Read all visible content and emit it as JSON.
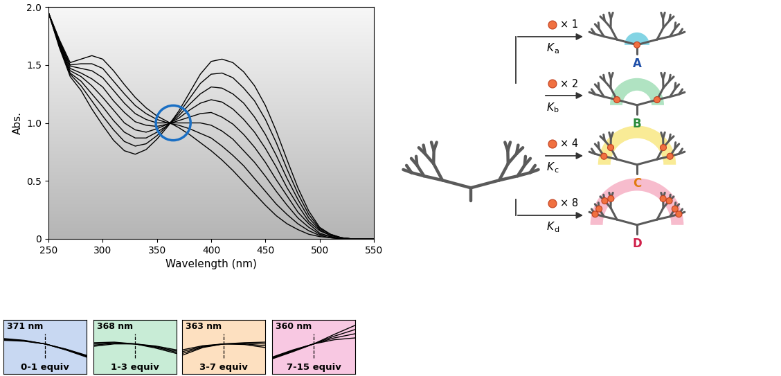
{
  "chart_data": [
    {
      "type": "line",
      "x_label": "Wavelength (nm)",
      "y_label": "Abs.",
      "color": "#000000",
      "x": [
        250,
        260,
        270,
        280,
        290,
        300,
        310,
        320,
        330,
        340,
        350,
        360,
        370,
        380,
        390,
        400,
        410,
        420,
        430,
        440,
        450,
        460,
        470,
        480,
        490,
        500,
        510,
        520,
        530,
        540,
        550
      ],
      "series": [
        {
          "values": [
            1.95,
            1.72,
            1.52,
            1.55,
            1.58,
            1.55,
            1.45,
            1.33,
            1.22,
            1.13,
            1.06,
            1.01,
            0.96,
            0.9,
            0.83,
            0.76,
            0.68,
            0.59,
            0.49,
            0.39,
            0.29,
            0.2,
            0.13,
            0.08,
            0.04,
            0.02,
            0.01,
            0,
            0,
            0,
            0
          ]
        },
        {
          "values": [
            1.95,
            1.71,
            1.5,
            1.51,
            1.51,
            1.47,
            1.36,
            1.25,
            1.15,
            1.08,
            1.03,
            1.0,
            0.98,
            0.95,
            0.91,
            0.87,
            0.8,
            0.72,
            0.63,
            0.52,
            0.41,
            0.3,
            0.21,
            0.13,
            0.07,
            0.03,
            0.01,
            0,
            0,
            0,
            0
          ]
        },
        {
          "values": [
            1.95,
            1.7,
            1.49,
            1.47,
            1.45,
            1.39,
            1.28,
            1.17,
            1.08,
            1.03,
            1.0,
            1.0,
            1.0,
            1.0,
            1.0,
            0.98,
            0.93,
            0.86,
            0.76,
            0.66,
            0.54,
            0.41,
            0.29,
            0.18,
            0.1,
            0.04,
            0.02,
            0,
            0,
            0,
            0
          ]
        },
        {
          "values": [
            1.95,
            1.69,
            1.47,
            1.43,
            1.38,
            1.31,
            1.19,
            1.09,
            1.01,
            0.98,
            0.97,
            0.99,
            1.02,
            1.05,
            1.08,
            1.09,
            1.05,
            0.99,
            0.9,
            0.79,
            0.66,
            0.51,
            0.37,
            0.23,
            0.13,
            0.05,
            0.02,
            0,
            0,
            0,
            0
          ]
        },
        {
          "values": [
            1.95,
            1.68,
            1.45,
            1.4,
            1.32,
            1.22,
            1.11,
            1.0,
            0.94,
            0.92,
            0.95,
            0.99,
            1.04,
            1.11,
            1.17,
            1.2,
            1.18,
            1.12,
            1.03,
            0.92,
            0.78,
            0.62,
            0.44,
            0.29,
            0.15,
            0.07,
            0.03,
            0.01,
            0,
            0,
            0
          ]
        },
        {
          "values": [
            1.95,
            1.67,
            1.43,
            1.36,
            1.25,
            1.14,
            1.02,
            0.92,
            0.87,
            0.87,
            0.92,
            0.98,
            1.06,
            1.16,
            1.25,
            1.31,
            1.3,
            1.25,
            1.17,
            1.05,
            0.9,
            0.72,
            0.52,
            0.34,
            0.18,
            0.08,
            0.03,
            0.01,
            0,
            0,
            0
          ]
        },
        {
          "values": [
            1.95,
            1.66,
            1.42,
            1.32,
            1.19,
            1.06,
            0.94,
            0.84,
            0.8,
            0.82,
            0.89,
            0.98,
            1.08,
            1.21,
            1.34,
            1.42,
            1.43,
            1.39,
            1.3,
            1.19,
            1.03,
            0.83,
            0.6,
            0.39,
            0.21,
            0.09,
            0.04,
            0.01,
            0,
            0,
            0
          ]
        },
        {
          "values": [
            1.95,
            1.65,
            1.4,
            1.28,
            1.12,
            0.98,
            0.85,
            0.76,
            0.73,
            0.77,
            0.86,
            0.97,
            1.1,
            1.26,
            1.42,
            1.53,
            1.55,
            1.52,
            1.44,
            1.32,
            1.15,
            0.93,
            0.68,
            0.44,
            0.24,
            0.1,
            0.04,
            0.01,
            0,
            0,
            0
          ]
        }
      ],
      "xlim": [
        250,
        550
      ],
      "xticks": [
        250,
        300,
        350,
        400,
        450,
        500,
        550
      ],
      "ylim": [
        0,
        2
      ],
      "yticks": [
        0,
        0.5,
        {
          "value": 1,
          "label": "1.0"
        },
        1.5,
        {
          "value": 2,
          "label": "2.0"
        }
      ],
      "isosbestic_point": [
        365,
        1.0
      ]
    },
    {
      "type": "line",
      "title": "371 nm",
      "subtitle": "0-1 equiv",
      "color": "#000000",
      "tick_labels": false,
      "x": [
        341,
        356,
        371,
        386,
        401
      ],
      "isosbestic_x": 371,
      "series": [
        {
          "values": [
            1.09,
            1.06,
            1.0,
            0.9,
            0.78
          ]
        },
        {
          "values": [
            1.08,
            1.055,
            1.0,
            0.905,
            0.79
          ]
        },
        {
          "values": [
            1.07,
            1.05,
            1.0,
            0.91,
            0.8
          ]
        },
        {
          "values": [
            1.06,
            1.045,
            1.0,
            0.915,
            0.81
          ]
        }
      ],
      "xlim": [
        341,
        401
      ],
      "ylim": [
        0.5,
        1.4
      ]
    },
    {
      "type": "line",
      "title": "368 nm",
      "subtitle": "1-3 equiv",
      "color": "#000000",
      "tick_labels": false,
      "x": [
        338,
        353,
        368,
        383,
        398
      ],
      "isosbestic_x": 368,
      "series": [
        {
          "values": [
            1.02,
            1.03,
            1.0,
            0.93,
            0.84
          ]
        },
        {
          "values": [
            1.0,
            1.02,
            1.0,
            0.945,
            0.86
          ]
        },
        {
          "values": [
            0.98,
            1.01,
            1.0,
            0.955,
            0.88
          ]
        },
        {
          "values": [
            0.96,
            1.0,
            1.0,
            0.965,
            0.9
          ]
        }
      ],
      "xlim": [
        338,
        398
      ],
      "ylim": [
        0.5,
        1.4
      ]
    },
    {
      "type": "line",
      "title": "363 nm",
      "subtitle": "3-7 equiv",
      "color": "#000000",
      "tick_labels": false,
      "x": [
        333,
        348,
        363,
        378,
        393
      ],
      "isosbestic_x": 363,
      "series": [
        {
          "values": [
            0.9,
            0.97,
            1.0,
            0.99,
            0.94
          ]
        },
        {
          "values": [
            0.87,
            0.96,
            1.0,
            1.0,
            0.97
          ]
        },
        {
          "values": [
            0.84,
            0.95,
            1.0,
            1.01,
            1.0
          ]
        },
        {
          "values": [
            0.81,
            0.94,
            1.0,
            1.02,
            1.03
          ]
        }
      ],
      "xlim": [
        333,
        393
      ],
      "ylim": [
        0.5,
        1.4
      ]
    },
    {
      "type": "line",
      "title": "360 nm",
      "subtitle": "7-15 equiv",
      "color": "#000000",
      "tick_labels": false,
      "x": [
        330,
        345,
        360,
        375,
        390
      ],
      "isosbestic_x": 360,
      "series": [
        {
          "values": [
            0.78,
            0.9,
            1.0,
            1.07,
            1.1
          ]
        },
        {
          "values": [
            0.77,
            0.89,
            1.0,
            1.1,
            1.17
          ]
        },
        {
          "values": [
            0.76,
            0.88,
            1.0,
            1.13,
            1.24
          ]
        },
        {
          "values": [
            0.75,
            0.87,
            1.0,
            1.16,
            1.31
          ]
        }
      ],
      "xlim": [
        330,
        390
      ],
      "ylim": [
        0.5,
        1.4
      ]
    }
  ],
  "diagram": {
    "reactions": [
      {
        "guests": 1,
        "guest_label": "× 1",
        "constant": "Ka",
        "product": "A",
        "color": "#1f4fa8"
      },
      {
        "guests": 2,
        "guest_label": "× 2",
        "constant": "Kb",
        "product": "B",
        "color": "#2a8a3a"
      },
      {
        "guests": 4,
        "guest_label": "× 4",
        "constant": "Kc",
        "product": "C",
        "color": "#e07a10"
      },
      {
        "guests": 8,
        "guest_label": "× 8",
        "constant": "Kd",
        "product": "D",
        "color": "#d0204a"
      }
    ]
  }
}
